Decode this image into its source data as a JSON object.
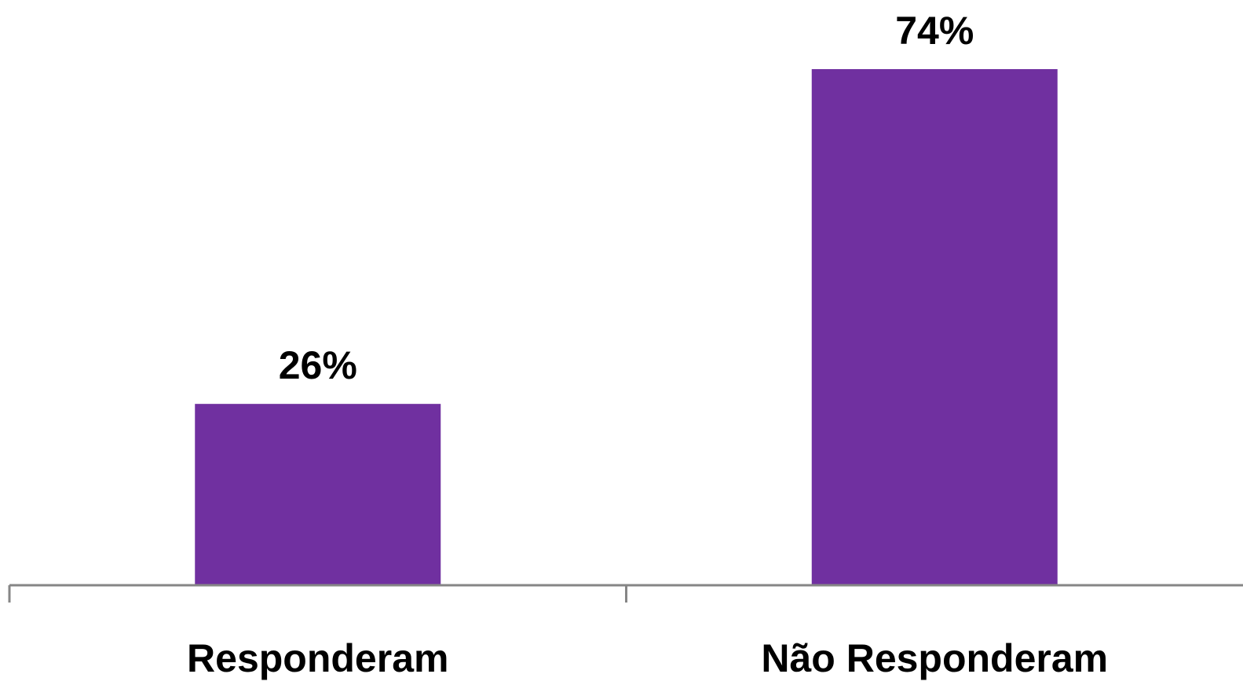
{
  "chart_data": {
    "type": "bar",
    "categories": [
      "Responderam",
      "Não Responderam"
    ],
    "values": [
      26,
      74
    ],
    "data_labels": [
      "26%",
      "74%"
    ],
    "ylim": [
      0,
      74
    ],
    "grid": false,
    "legend": "none",
    "bar_color": "#7030a0",
    "axis_color": "#868686"
  }
}
